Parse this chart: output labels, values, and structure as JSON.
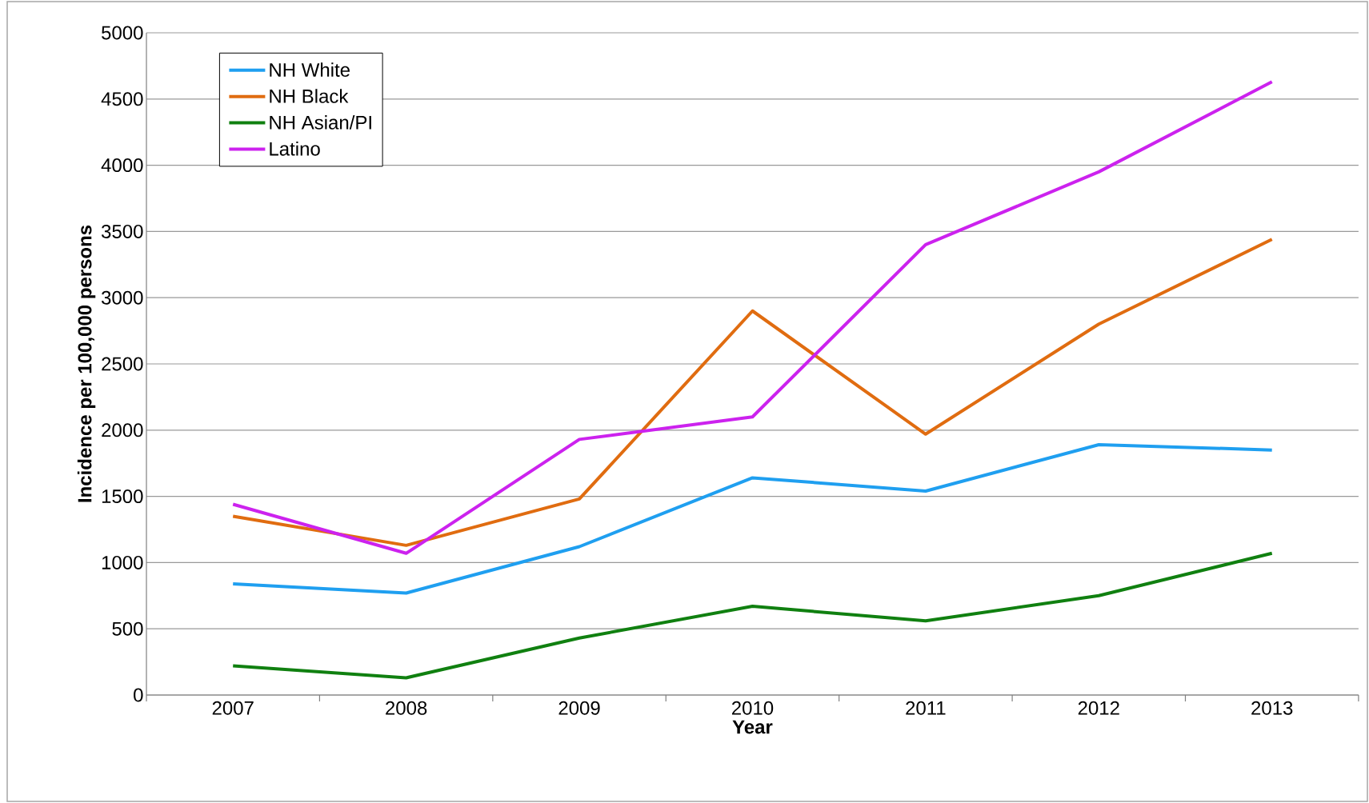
{
  "chart_data": {
    "type": "line",
    "xlabel": "Year",
    "ylabel": "Incidence per 100,000 persons",
    "categories": [
      "2007",
      "2008",
      "2009",
      "2010",
      "2011",
      "2012",
      "2013"
    ],
    "series": [
      {
        "name": "NH White",
        "color": "#1f9ff0",
        "values": [
          840,
          770,
          1120,
          1640,
          1540,
          1890,
          1850
        ]
      },
      {
        "name": "NH Black",
        "color": "#e06c10",
        "values": [
          1350,
          1130,
          1480,
          2900,
          1970,
          2800,
          3440
        ]
      },
      {
        "name": "NH Asian/PI",
        "color": "#108010",
        "values": [
          220,
          130,
          430,
          670,
          560,
          750,
          1070
        ]
      },
      {
        "name": "Latino",
        "color": "#cc22ee",
        "values": [
          1440,
          1070,
          1930,
          2100,
          3400,
          3950,
          4630
        ]
      }
    ],
    "ylim": [
      0,
      5000
    ],
    "yticks": [
      0,
      500,
      1000,
      1500,
      2000,
      2500,
      3000,
      3500,
      4000,
      4500,
      5000
    ],
    "grid": "y",
    "legend": "top left",
    "marker": "none",
    "line_style": "solid"
  }
}
